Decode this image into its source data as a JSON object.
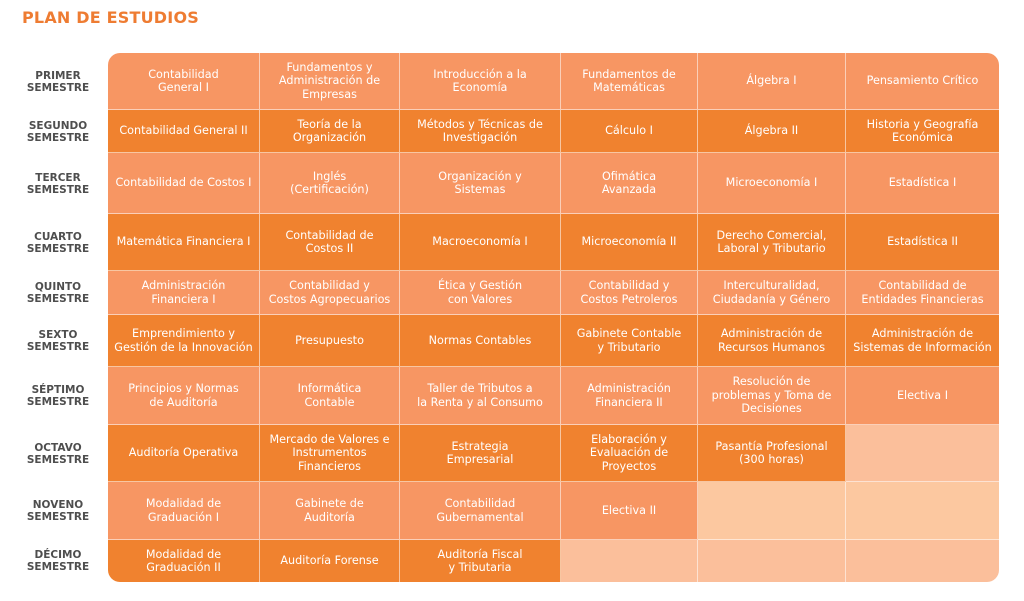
{
  "title": "PLAN DE ESTUDIOS",
  "semesters": [
    {
      "name": "PRIMER",
      "suffix": "SEMESTRE",
      "courses": [
        "Contabilidad\nGeneral I",
        "Fundamentos y\nAdministración de\nEmpresas",
        "Introducción a la\nEconomía",
        "Fundamentos de\nMatemáticas",
        "Álgebra I",
        "Pensamiento Crítico"
      ]
    },
    {
      "name": "SEGUNDO",
      "suffix": "SEMESTRE",
      "courses": [
        "Contabilidad General II",
        "Teoría de la\nOrganización",
        "Métodos y Técnicas de\nInvestigación",
        "Cálculo I",
        "Álgebra II",
        "Historia y Geografía\nEconómica"
      ]
    },
    {
      "name": "TERCER",
      "suffix": "SEMESTRE",
      "courses": [
        "Contabilidad de Costos I",
        "Inglés\n(Certificación)",
        "Organización y\nSistemas",
        "Ofimática\nAvanzada",
        "Microeconomía I",
        "Estadística I"
      ]
    },
    {
      "name": "CUARTO",
      "suffix": "SEMESTRE",
      "courses": [
        "Matemática Financiera I",
        "Contabilidad de\nCostos II",
        "Macroeconomía I",
        "Microeconomía II",
        "Derecho Comercial,\nLaboral y Tributario",
        "Estadística II"
      ]
    },
    {
      "name": "QUINTO",
      "suffix": "SEMESTRE",
      "courses": [
        "Administración\nFinanciera I",
        "Contabilidad y\nCostos Agropecuarios",
        "Ética y Gestión\ncon Valores",
        "Contabilidad y\nCostos Petroleros",
        "Interculturalidad,\nCiudadanía y Género",
        "Contabilidad de\nEntidades Financieras"
      ]
    },
    {
      "name": "SEXTO",
      "suffix": "SEMESTRE",
      "courses": [
        "Emprendimiento y\nGestión de la Innovación",
        "Presupuesto",
        "Normas Contables",
        "Gabinete Contable\ny Tributario",
        "Administración de\nRecursos Humanos",
        "Administración de\nSistemas  de Información"
      ]
    },
    {
      "name": "SÉPTIMO",
      "suffix": "SEMESTRE",
      "courses": [
        "Principios y Normas\nde Auditoría",
        "Informática\nContable",
        "Taller de Tributos a\nla Renta y al Consumo",
        "Administración\nFinanciera II",
        "Resolución de\nproblemas y Toma de\nDecisiones",
        "Electiva I"
      ]
    },
    {
      "name": "OCTAVO",
      "suffix": "SEMESTRE",
      "courses": [
        "Auditoría Operativa",
        "Mercado de Valores e\nInstrumentos\nFinancieros",
        "Estrategia\nEmpresarial",
        "Elaboración y\nEvaluación de\nProyectos",
        "Pasantía Profesional\n(300 horas)",
        ""
      ]
    },
    {
      "name": "NOVENO",
      "suffix": "SEMESTRE",
      "courses": [
        "Modalidad de\nGraduación I",
        "Gabinete de\nAuditoría",
        "Contabilidad\nGubernamental",
        "Electiva II",
        "",
        ""
      ]
    },
    {
      "name": "DÉCIMO",
      "suffix": "SEMESTRE",
      "courses": [
        "Modalidad de\nGraduación II",
        "Auditoría Forense",
        "Auditoría Fiscal\ny Tributaria",
        "",
        "",
        ""
      ]
    }
  ]
}
